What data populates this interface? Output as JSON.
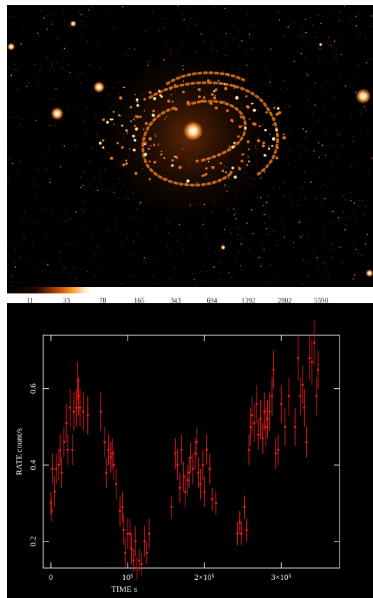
{
  "colorbar": {
    "ticks": [
      11,
      33,
      78,
      165,
      343,
      694,
      1392,
      2802,
      5590
    ]
  },
  "chart_data": {
    "type": "scatter",
    "color": "#ff1a1a",
    "x_label": "TIME   s",
    "y_label": "RATE   count/s",
    "xlim": [
      -10000,
      376000
    ],
    "ylim": [
      0.13,
      0.74
    ],
    "xticks": [
      0,
      {
        "value": 100000,
        "label": "10⁵"
      },
      {
        "value": 200000,
        "label": "2×10⁵"
      },
      {
        "value": 300000,
        "label": "3×10⁵"
      }
    ],
    "yticks": [
      0.2,
      0.4,
      0.6
    ],
    "x": [
      0,
      1000,
      2000,
      5000,
      7000,
      10000,
      12000,
      14000,
      17000,
      20000,
      22000,
      25000,
      28000,
      30000,
      33000,
      35000,
      36000,
      38000,
      42000,
      48000,
      65000,
      70000,
      72000,
      75000,
      78000,
      80000,
      82000,
      85000,
      90000,
      93000,
      95000,
      97000,
      100000,
      103000,
      105000,
      108000,
      110000,
      112000,
      115000,
      118000,
      122000,
      125000,
      128000,
      157000,
      162000,
      165000,
      168000,
      170000,
      173000,
      175000,
      178000,
      180000,
      182000,
      185000,
      188000,
      190000,
      192000,
      195000,
      198000,
      200000,
      203000,
      207000,
      210000,
      215000,
      243000,
      246000,
      248000,
      252000,
      255000,
      258000,
      260000,
      262000,
      265000,
      268000,
      270000,
      273000,
      276000,
      278000,
      280000,
      282000,
      285000,
      288000,
      290000,
      293000,
      296000,
      300000,
      305000,
      310000,
      318000,
      322000,
      325000,
      328000,
      330000,
      333000,
      337000,
      340000,
      343000,
      346000,
      348000
    ],
    "values": [
      0.3,
      0.28,
      0.39,
      0.33,
      0.39,
      0.4,
      0.44,
      0.38,
      0.46,
      0.51,
      0.44,
      0.55,
      0.44,
      0.54,
      0.55,
      0.62,
      0.58,
      0.55,
      0.54,
      0.53,
      0.54,
      0.46,
      0.38,
      0.44,
      0.42,
      0.43,
      0.4,
      0.35,
      0.28,
      0.29,
      0.23,
      0.17,
      0.22,
      0.22,
      0.18,
      0.15,
      0.2,
      0.13,
      0.15,
      0.14,
      0.2,
      0.17,
      0.22,
      0.29,
      0.43,
      0.4,
      0.34,
      0.44,
      0.37,
      0.33,
      0.36,
      0.38,
      0.42,
      0.39,
      0.43,
      0.46,
      0.38,
      0.35,
      0.4,
      0.33,
      0.44,
      0.39,
      0.31,
      0.3,
      0.22,
      0.25,
      0.22,
      0.29,
      0.23,
      0.44,
      0.5,
      0.53,
      0.51,
      0.56,
      0.48,
      0.52,
      0.47,
      0.54,
      0.5,
      0.52,
      0.54,
      0.58,
      0.65,
      0.43,
      0.44,
      0.56,
      0.5,
      0.58,
      0.5,
      0.68,
      0.58,
      0.61,
      0.55,
      0.46,
      0.68,
      0.67,
      0.72,
      0.58,
      0.65
    ],
    "errors": [
      0.03,
      0.03,
      0.04,
      0.04,
      0.04,
      0.04,
      0.04,
      0.04,
      0.04,
      0.05,
      0.04,
      0.05,
      0.04,
      0.05,
      0.05,
      0.05,
      0.05,
      0.05,
      0.05,
      0.05,
      0.05,
      0.04,
      0.04,
      0.04,
      0.04,
      0.04,
      0.04,
      0.04,
      0.04,
      0.04,
      0.04,
      0.04,
      0.04,
      0.04,
      0.04,
      0.03,
      0.04,
      0.03,
      0.03,
      0.03,
      0.04,
      0.03,
      0.04,
      0.03,
      0.04,
      0.04,
      0.04,
      0.04,
      0.04,
      0.04,
      0.04,
      0.04,
      0.04,
      0.04,
      0.04,
      0.04,
      0.04,
      0.04,
      0.04,
      0.04,
      0.04,
      0.04,
      0.03,
      0.03,
      0.03,
      0.03,
      0.03,
      0.03,
      0.03,
      0.04,
      0.05,
      0.05,
      0.05,
      0.05,
      0.04,
      0.05,
      0.04,
      0.05,
      0.05,
      0.05,
      0.05,
      0.05,
      0.05,
      0.04,
      0.04,
      0.05,
      0.05,
      0.05,
      0.05,
      0.06,
      0.05,
      0.05,
      0.05,
      0.04,
      0.06,
      0.06,
      0.06,
      0.05,
      0.05
    ]
  }
}
